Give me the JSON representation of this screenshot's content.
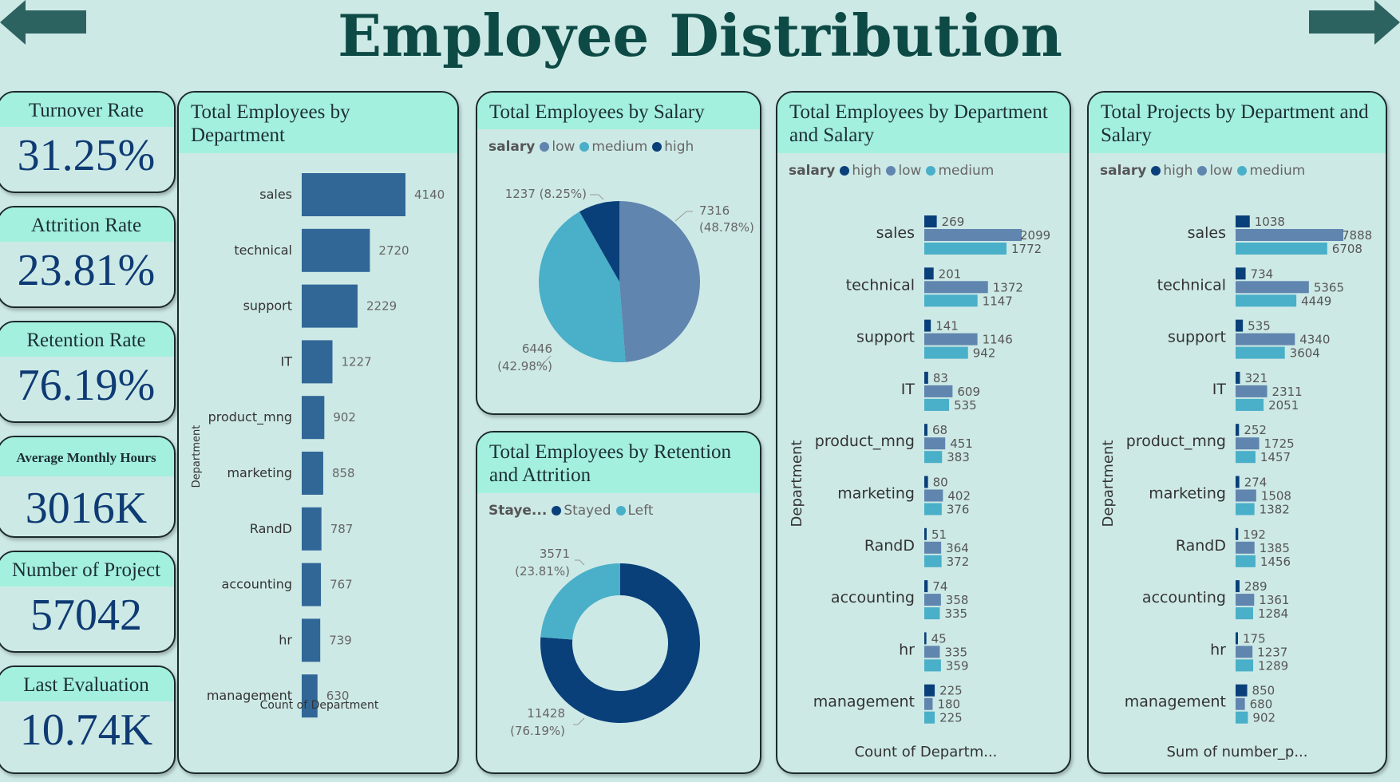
{
  "page": {
    "title": "Employee Distribution"
  },
  "nav": {
    "back_icon": "arrow-left-icon",
    "forward_icon": "arrow-right-icon"
  },
  "colors": {
    "low": "#6085ae",
    "medium": "#4aafc8",
    "high": "#0a4079",
    "bar": "#306797",
    "header": "#a3f0de",
    "title": "#0d4a45",
    "kpi": "#0e3b73"
  },
  "kpis": [
    {
      "label": "Turnover Rate",
      "value": "31.25%"
    },
    {
      "label": "Attrition Rate",
      "value": "23.81%"
    },
    {
      "label": "Retention Rate",
      "value": "76.19%"
    },
    {
      "label": "Average Monthly Hours",
      "value": "3016K"
    },
    {
      "label": "Number of Project",
      "value": "57042"
    },
    {
      "label": "Last Evaluation",
      "value": "10.74K"
    }
  ],
  "chart_data": [
    {
      "id": "dept",
      "type": "bar",
      "orientation": "horizontal",
      "title": "Total Employees by Department",
      "xlabel": "Count of Department",
      "ylabel": "Department",
      "categories": [
        "sales",
        "technical",
        "support",
        "IT",
        "product_mng",
        "marketing",
        "RandD",
        "accounting",
        "hr",
        "management"
      ],
      "values": [
        4140,
        2720,
        2229,
        1227,
        902,
        858,
        787,
        767,
        739,
        630
      ],
      "grid": false
    },
    {
      "id": "salary",
      "type": "pie",
      "title": "Total Employees by Salary",
      "legend_title": "salary",
      "legend": [
        "low",
        "medium",
        "high"
      ],
      "slices": [
        {
          "name": "low",
          "value": 7316,
          "label": "7316",
          "pct": "(48.78%)"
        },
        {
          "name": "medium",
          "value": 6446,
          "label": "6446",
          "pct": "(42.98%)"
        },
        {
          "name": "high",
          "value": 1237,
          "label": "1237 (8.25%)",
          "pct": ""
        }
      ]
    },
    {
      "id": "retention",
      "type": "pie",
      "variant": "donut",
      "title": "Total Employees by Retention and Attrition",
      "legend_title": "Staye...",
      "legend": [
        "Stayed",
        "Left"
      ],
      "slices": [
        {
          "name": "Stayed",
          "value": 11428,
          "label": "11428",
          "pct": "(76.19%)"
        },
        {
          "name": "Left",
          "value": 3571,
          "label": "3571",
          "pct": "(23.81%)"
        }
      ]
    },
    {
      "id": "dept_salary",
      "type": "bar",
      "orientation": "horizontal",
      "title": "Total Employees by Department and Salary",
      "xlabel": "Count of Departm...",
      "ylabel": "Department",
      "legend_title": "salary",
      "legend": [
        "high",
        "low",
        "medium"
      ],
      "categories": [
        "sales",
        "technical",
        "support",
        "IT",
        "product_mng",
        "marketing",
        "RandD",
        "accounting",
        "hr",
        "management"
      ],
      "series": [
        {
          "name": "high",
          "values": [
            269,
            201,
            141,
            83,
            68,
            80,
            51,
            74,
            45,
            225
          ]
        },
        {
          "name": "low",
          "values": [
            2099,
            1372,
            1146,
            609,
            451,
            402,
            364,
            358,
            335,
            180
          ]
        },
        {
          "name": "medium",
          "values": [
            1772,
            1147,
            942,
            535,
            383,
            376,
            372,
            335,
            359,
            225
          ]
        }
      ]
    },
    {
      "id": "proj_salary",
      "type": "bar",
      "orientation": "horizontal",
      "title": "Total Projects by Department and Salary",
      "xlabel": "Sum of number_p...",
      "ylabel": "Department",
      "legend_title": "salary",
      "legend": [
        "high",
        "low",
        "medium"
      ],
      "categories": [
        "sales",
        "technical",
        "support",
        "IT",
        "product_mng",
        "marketing",
        "RandD",
        "accounting",
        "hr",
        "management"
      ],
      "series": [
        {
          "name": "high",
          "values": [
            1038,
            734,
            535,
            321,
            252,
            274,
            192,
            289,
            175,
            850
          ]
        },
        {
          "name": "low",
          "values": [
            7888,
            5365,
            4340,
            2311,
            1725,
            1508,
            1385,
            1361,
            1237,
            680
          ]
        },
        {
          "name": "medium",
          "values": [
            6708,
            4449,
            3604,
            2051,
            1457,
            1382,
            1456,
            1284,
            1289,
            902
          ]
        }
      ]
    }
  ]
}
